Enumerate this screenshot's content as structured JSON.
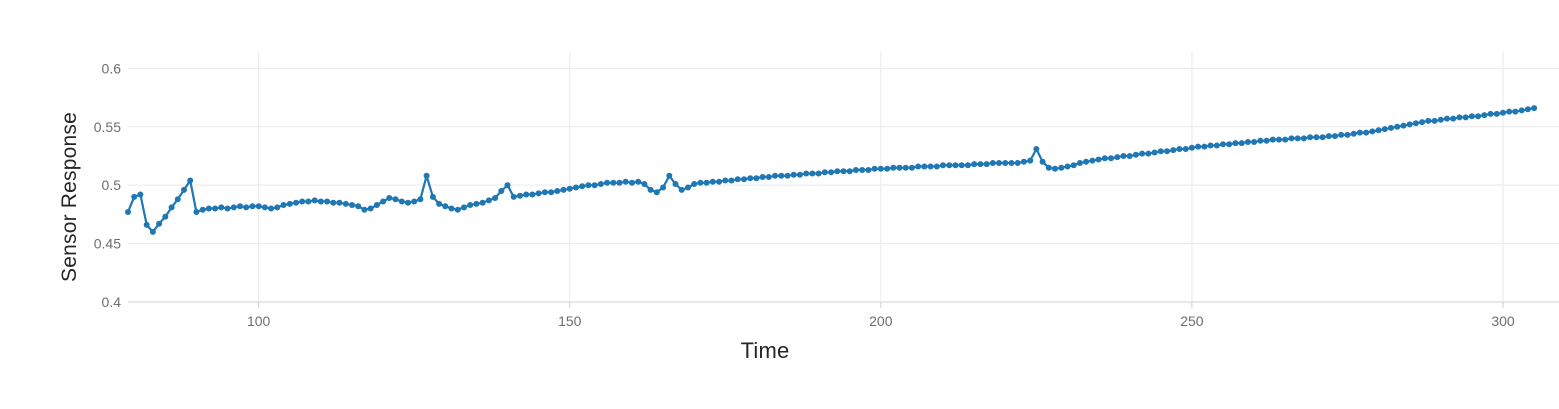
{
  "chart_data": {
    "type": "line",
    "title": "",
    "xlabel": "Time",
    "ylabel": "Sensor Response",
    "xlim": [
      79,
      309
    ],
    "ylim": [
      0.4,
      0.614
    ],
    "x_ticks": [
      100,
      150,
      200,
      250,
      300
    ],
    "y_ticks": [
      0.4,
      0.45,
      0.5,
      0.55,
      0.6
    ],
    "grid": true,
    "legend_position": "none",
    "marker": "circle",
    "line_color": "#1f77b4",
    "marker_color": "#1f77b4",
    "series": [
      {
        "name": "sensor-response",
        "t_start": 79,
        "t_step": 1,
        "values": [
          0.477,
          0.49,
          0.492,
          0.466,
          0.46,
          0.467,
          0.473,
          0.481,
          0.488,
          0.496,
          0.504,
          0.477,
          0.479,
          0.48,
          0.48,
          0.481,
          0.48,
          0.481,
          0.482,
          0.481,
          0.482,
          0.482,
          0.481,
          0.48,
          0.481,
          0.483,
          0.484,
          0.485,
          0.486,
          0.486,
          0.487,
          0.486,
          0.486,
          0.485,
          0.485,
          0.484,
          0.483,
          0.482,
          0.479,
          0.48,
          0.483,
          0.486,
          0.489,
          0.488,
          0.486,
          0.485,
          0.486,
          0.488,
          0.508,
          0.49,
          0.484,
          0.482,
          0.48,
          0.479,
          0.481,
          0.483,
          0.484,
          0.485,
          0.487,
          0.489,
          0.495,
          0.5,
          0.49,
          0.491,
          0.492,
          0.492,
          0.493,
          0.494,
          0.494,
          0.495,
          0.496,
          0.497,
          0.498,
          0.499,
          0.5,
          0.5,
          0.501,
          0.502,
          0.502,
          0.502,
          0.503,
          0.502,
          0.503,
          0.501,
          0.496,
          0.494,
          0.498,
          0.508,
          0.501,
          0.496,
          0.498,
          0.501,
          0.502,
          0.502,
          0.503,
          0.503,
          0.504,
          0.504,
          0.505,
          0.505,
          0.506,
          0.506,
          0.507,
          0.507,
          0.508,
          0.508,
          0.508,
          0.509,
          0.509,
          0.51,
          0.51,
          0.51,
          0.511,
          0.511,
          0.512,
          0.512,
          0.512,
          0.513,
          0.513,
          0.513,
          0.514,
          0.514,
          0.514,
          0.515,
          0.515,
          0.515,
          0.515,
          0.516,
          0.516,
          0.516,
          0.516,
          0.517,
          0.517,
          0.517,
          0.517,
          0.517,
          0.518,
          0.518,
          0.518,
          0.519,
          0.519,
          0.519,
          0.519,
          0.519,
          0.52,
          0.521,
          0.531,
          0.52,
          0.515,
          0.514,
          0.515,
          0.516,
          0.517,
          0.519,
          0.52,
          0.521,
          0.522,
          0.523,
          0.523,
          0.524,
          0.525,
          0.525,
          0.526,
          0.527,
          0.527,
          0.528,
          0.529,
          0.529,
          0.53,
          0.531,
          0.531,
          0.532,
          0.533,
          0.533,
          0.534,
          0.534,
          0.535,
          0.535,
          0.536,
          0.536,
          0.537,
          0.537,
          0.538,
          0.538,
          0.539,
          0.539,
          0.539,
          0.54,
          0.54,
          0.54,
          0.541,
          0.541,
          0.541,
          0.542,
          0.542,
          0.543,
          0.543,
          0.544,
          0.545,
          0.545,
          0.546,
          0.547,
          0.548,
          0.549,
          0.55,
          0.551,
          0.552,
          0.553,
          0.554,
          0.555,
          0.555,
          0.556,
          0.557,
          0.557,
          0.558,
          0.558,
          0.559,
          0.559,
          0.56,
          0.561,
          0.561,
          0.562,
          0.563,
          0.563,
          0.564,
          0.565,
          0.566
        ]
      }
    ]
  }
}
